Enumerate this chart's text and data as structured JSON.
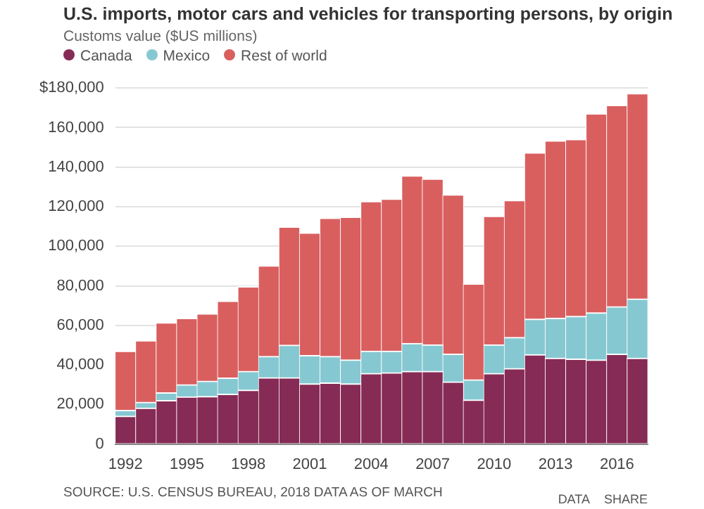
{
  "chart_data": {
    "type": "bar",
    "stacked": true,
    "title": "U.S. imports, motor cars and vehicles for transporting persons, by origin",
    "subtitle": "Customs value ($US millions)",
    "categories": [
      "1992",
      null,
      null,
      "1995",
      null,
      null,
      "1998",
      null,
      null,
      "2001",
      null,
      null,
      "2004",
      null,
      null,
      "2007",
      null,
      null,
      "2010",
      null,
      null,
      "2013",
      null,
      null,
      "2016",
      null
    ],
    "series": [
      {
        "name": "Canada",
        "color": "#862b55",
        "values": [
          14100,
          18200,
          22000,
          23900,
          24100,
          25200,
          27300,
          33600,
          33600,
          30500,
          30900,
          30500,
          35700,
          36100,
          36800,
          36800,
          31400,
          22300,
          35700,
          38200,
          45200,
          43400,
          43000,
          42500,
          45500,
          43400
        ]
      },
      {
        "name": "Mexico",
        "color": "#86c8d1",
        "values": [
          2900,
          2900,
          3900,
          6100,
          7700,
          8200,
          9500,
          10700,
          16400,
          14300,
          13400,
          12000,
          11300,
          10900,
          14100,
          13400,
          14100,
          10200,
          14500,
          15700,
          18000,
          20200,
          21600,
          23900,
          24000,
          30000
        ]
      },
      {
        "name": "Rest of world",
        "color": "#d95f5f",
        "values": [
          30000,
          31200,
          35500,
          33600,
          34100,
          38900,
          42800,
          45900,
          59800,
          62000,
          70000,
          72300,
          75700,
          76900,
          84800,
          83900,
          80600,
          48500,
          65000,
          69300,
          84100,
          89800,
          89500,
          100600,
          101800,
          103900
        ]
      }
    ],
    "ylim": [
      0,
      180000
    ],
    "yticks": [
      0,
      {
        "value": 20000,
        "label": "20,000"
      },
      {
        "value": 40000,
        "label": "40,000"
      },
      {
        "value": 60000,
        "label": "60,000"
      },
      {
        "value": 80000,
        "label": "80,000"
      },
      {
        "value": 100000,
        "label": "100,000"
      },
      {
        "value": 120000,
        "label": "120,000"
      },
      {
        "value": 140000,
        "label": "140,000"
      },
      {
        "value": 160000,
        "label": "160,000"
      },
      {
        "value": 180000,
        "label": "$180,000"
      }
    ],
    "grid": "y",
    "legend": "top left",
    "annotations": [
      "SOURCE: U.S. CENSUS BUREAU, 2018 DATA AS OF MARCH",
      "DATA",
      "SHARE"
    ]
  }
}
